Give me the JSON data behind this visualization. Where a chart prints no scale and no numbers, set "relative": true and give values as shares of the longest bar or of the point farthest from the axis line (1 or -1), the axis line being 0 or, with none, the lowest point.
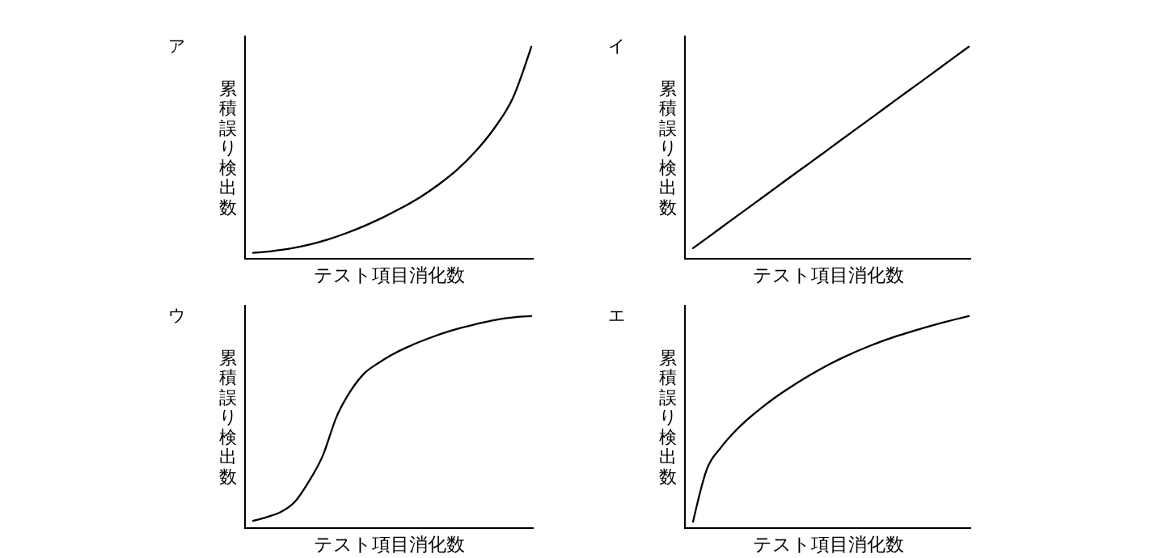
{
  "chart_data": [
    {
      "type": "line",
      "title": "ア",
      "xlabel": "テスト項目消化数",
      "ylabel": "累積誤り検出数",
      "relative": true,
      "color": "#000000",
      "categories": [
        null,
        null,
        null,
        null,
        null,
        null,
        null,
        null,
        null,
        null,
        null,
        null,
        null,
        null,
        null,
        null
      ],
      "values": [
        0.028,
        0.036,
        0.048,
        0.066,
        0.09,
        0.12,
        0.155,
        0.195,
        0.24,
        0.29,
        0.35,
        0.42,
        0.507,
        0.615,
        0.757,
        1
      ]
    },
    {
      "type": "line",
      "title": "イ",
      "xlabel": "テスト項目消化数",
      "ylabel": "累積誤り検出数",
      "relative": true,
      "color": "#000000",
      "categories": [
        null,
        null,
        null,
        null,
        null,
        null,
        null,
        null,
        null,
        null,
        null,
        null,
        null,
        null,
        null,
        null
      ],
      "values": [
        0.05,
        0.113,
        0.177,
        0.24,
        0.303,
        0.367,
        0.43,
        0.493,
        0.557,
        0.62,
        0.683,
        0.747,
        0.81,
        0.873,
        0.937,
        1
      ]
    },
    {
      "type": "line",
      "title": "ウ",
      "xlabel": "テスト項目消化数",
      "ylabel": "累積誤り検出数",
      "relative": true,
      "color": "#000000",
      "categories": [
        null,
        null,
        null,
        null,
        null,
        null,
        null,
        null,
        null,
        null,
        null,
        null,
        null,
        null,
        null,
        null,
        null,
        null,
        null,
        null,
        null
      ],
      "values": [
        0.034,
        0.052,
        0.076,
        0.124,
        0.219,
        0.34,
        0.525,
        0.646,
        0.73,
        0.778,
        0.818,
        0.851,
        0.879,
        0.904,
        0.926,
        0.945,
        0.962,
        0.976,
        0.988,
        0.996,
        1
      ]
    },
    {
      "type": "line",
      "title": "エ",
      "xlabel": "テスト項目消化数",
      "ylabel": "累積誤り検出数",
      "relative": true,
      "color": "#000000",
      "categories": [
        null,
        null,
        null,
        null,
        null,
        null,
        null,
        null,
        null,
        null,
        null,
        null,
        null,
        null,
        null,
        null,
        null,
        null,
        null,
        null,
        null
      ],
      "values": [
        0.03,
        0.277,
        0.378,
        0.453,
        0.515,
        0.569,
        0.618,
        0.662,
        0.703,
        0.741,
        0.776,
        0.808,
        0.837,
        0.864,
        0.888,
        0.91,
        0.93,
        0.949,
        0.967,
        0.984,
        1
      ]
    }
  ]
}
